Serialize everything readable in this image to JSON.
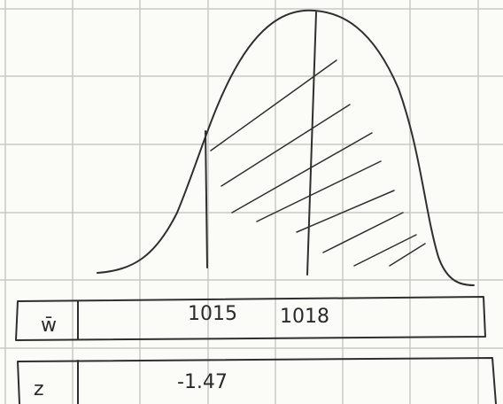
{
  "rows": [
    {
      "label": "w̄",
      "values": [
        "1015",
        "1018"
      ]
    },
    {
      "label": "z",
      "values": [
        "-1.47"
      ]
    }
  ]
}
